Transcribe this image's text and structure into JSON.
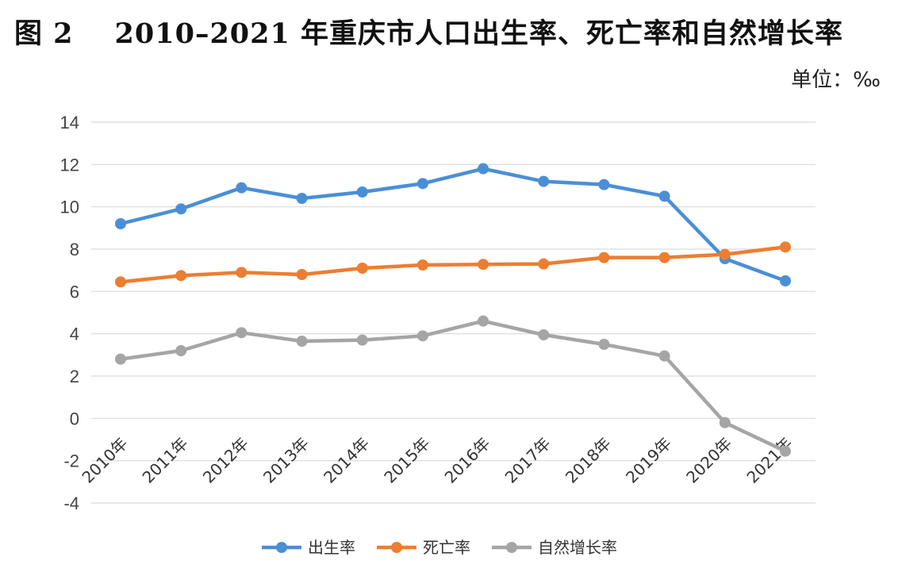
{
  "chart_data": {
    "type": "line",
    "figure_label": "图 2",
    "title": "2010–2021 年重庆市人口出生率、死亡率和自然增长率",
    "unit_label": "单位：‰",
    "categories": [
      "2010年",
      "2011年",
      "2012年",
      "2013年",
      "2014年",
      "2015年",
      "2016年",
      "2017年",
      "2018年",
      "2019年",
      "2020年",
      "2021年"
    ],
    "ylim": [
      -4,
      14
    ],
    "yticks": [
      -4,
      -2,
      0,
      2,
      4,
      6,
      8,
      10,
      12,
      14
    ],
    "grid": true,
    "legend_position": "bottom",
    "series": [
      {
        "name": "出生率",
        "color": "#4a8fd6",
        "values": [
          9.2,
          9.9,
          10.9,
          10.4,
          10.7,
          11.1,
          11.8,
          11.2,
          11.05,
          10.5,
          7.55,
          6.5
        ]
      },
      {
        "name": "死亡率",
        "color": "#ed7d31",
        "values": [
          6.45,
          6.75,
          6.9,
          6.8,
          7.1,
          7.25,
          7.28,
          7.3,
          7.6,
          7.6,
          7.75,
          8.1
        ]
      },
      {
        "name": "自然增长率",
        "color": "#a5a5a5",
        "values": [
          2.8,
          3.2,
          4.05,
          3.65,
          3.7,
          3.9,
          4.6,
          3.95,
          3.5,
          2.95,
          -0.2,
          -1.55
        ]
      }
    ]
  }
}
